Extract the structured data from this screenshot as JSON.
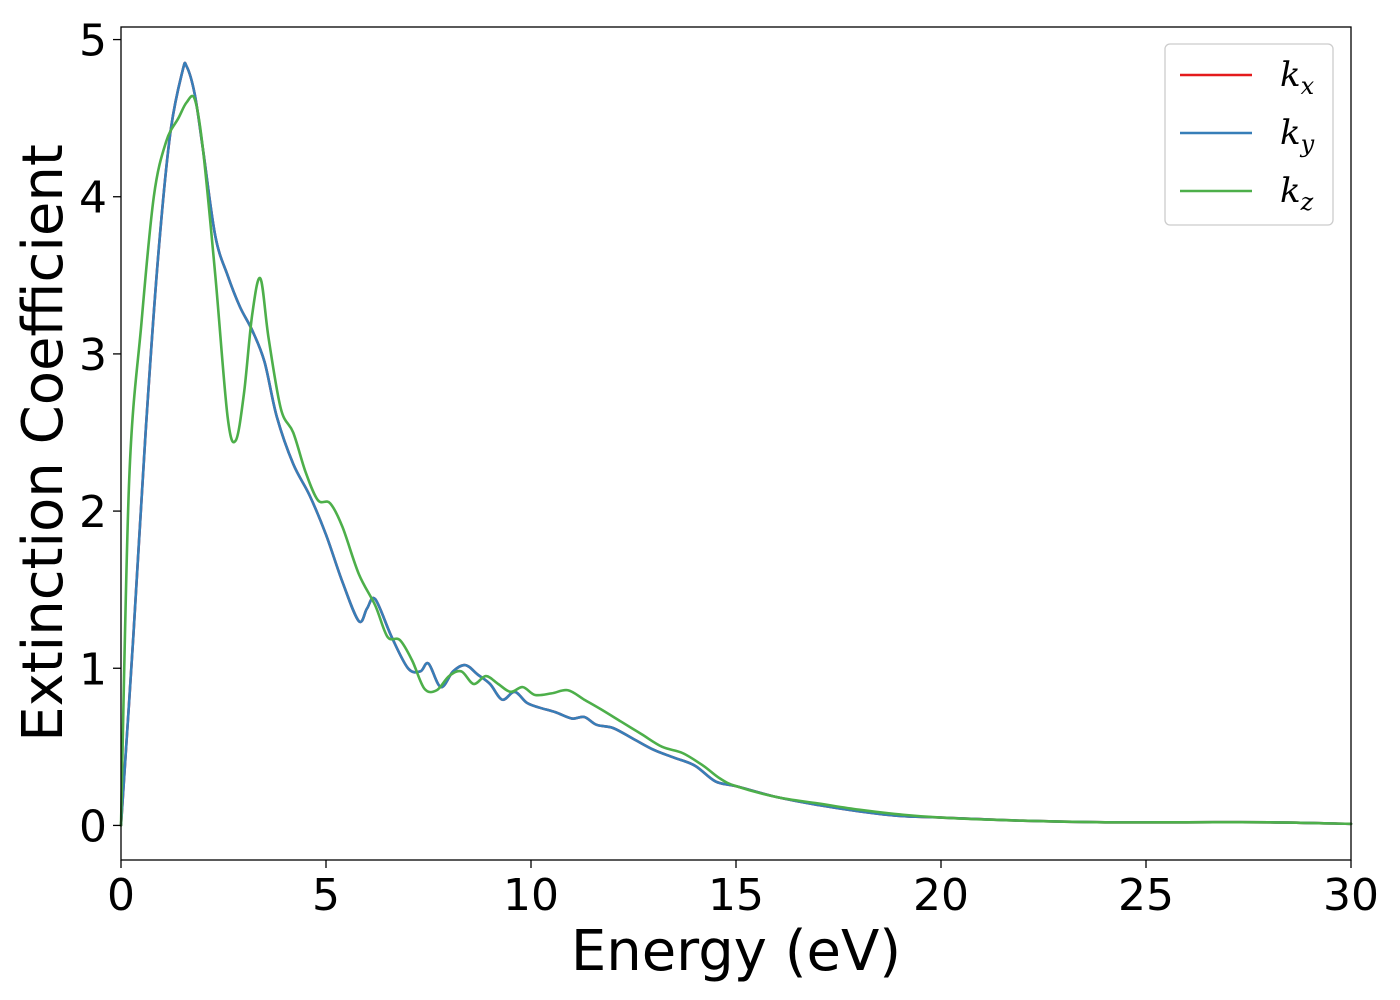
{
  "chart_data": {
    "type": "line",
    "title": "",
    "xlabel": "Energy (eV)",
    "ylabel": "Extinction Coefficient",
    "xlim": [
      0,
      30
    ],
    "ylim": [
      -0.22,
      5.08
    ],
    "xticks": [
      "0",
      "5",
      "10",
      "15",
      "20",
      "25",
      "30"
    ],
    "yticks": [
      "0",
      "1",
      "2",
      "3",
      "4",
      "5"
    ],
    "grid": false,
    "legend_position": "top-right",
    "series": [
      {
        "name": "k",
        "subscript": "x",
        "color": "#e41a1c",
        "x": [
          0,
          0.3,
          0.6,
          0.9,
          1.2,
          1.5,
          1.6,
          1.8,
          2.0,
          2.3,
          2.6,
          2.9,
          3.2,
          3.5,
          3.8,
          4.2,
          4.6,
          5.0,
          5.4,
          5.8,
          6.0,
          6.2,
          6.6,
          7.0,
          7.3,
          7.5,
          7.8,
          8.1,
          8.4,
          8.7,
          9.0,
          9.3,
          9.6,
          9.9,
          10.2,
          10.6,
          11.0,
          11.3,
          11.6,
          12.0,
          12.5,
          13.0,
          13.5,
          14.0,
          14.5,
          15.0,
          16.0,
          17.0,
          18.0,
          19.0,
          20.0,
          22.0,
          24.0,
          26.0,
          28.0,
          30.0
        ],
        "y": [
          0,
          1.2,
          2.5,
          3.6,
          4.4,
          4.8,
          4.83,
          4.65,
          4.3,
          3.75,
          3.5,
          3.3,
          3.15,
          2.95,
          2.6,
          2.3,
          2.1,
          1.85,
          1.55,
          1.3,
          1.38,
          1.44,
          1.2,
          1.0,
          0.98,
          1.03,
          0.88,
          0.98,
          1.02,
          0.96,
          0.9,
          0.8,
          0.85,
          0.78,
          0.75,
          0.72,
          0.68,
          0.69,
          0.64,
          0.62,
          0.55,
          0.48,
          0.43,
          0.38,
          0.28,
          0.25,
          0.18,
          0.13,
          0.09,
          0.06,
          0.05,
          0.03,
          0.02,
          0.02,
          0.02,
          0.01
        ]
      },
      {
        "name": "k",
        "subscript": "y",
        "color": "#377eb8",
        "x": [
          0,
          0.3,
          0.6,
          0.9,
          1.2,
          1.5,
          1.6,
          1.8,
          2.0,
          2.3,
          2.6,
          2.9,
          3.2,
          3.5,
          3.8,
          4.2,
          4.6,
          5.0,
          5.4,
          5.8,
          6.0,
          6.2,
          6.6,
          7.0,
          7.3,
          7.5,
          7.8,
          8.1,
          8.4,
          8.7,
          9.0,
          9.3,
          9.6,
          9.9,
          10.2,
          10.6,
          11.0,
          11.3,
          11.6,
          12.0,
          12.5,
          13.0,
          13.5,
          14.0,
          14.5,
          15.0,
          16.0,
          17.0,
          18.0,
          19.0,
          20.0,
          22.0,
          24.0,
          26.0,
          28.0,
          30.0
        ],
        "y": [
          0,
          1.2,
          2.5,
          3.6,
          4.4,
          4.8,
          4.83,
          4.65,
          4.3,
          3.75,
          3.5,
          3.3,
          3.15,
          2.95,
          2.6,
          2.3,
          2.1,
          1.85,
          1.55,
          1.3,
          1.38,
          1.44,
          1.2,
          1.0,
          0.98,
          1.03,
          0.88,
          0.98,
          1.02,
          0.96,
          0.9,
          0.8,
          0.85,
          0.78,
          0.75,
          0.72,
          0.68,
          0.69,
          0.64,
          0.62,
          0.55,
          0.48,
          0.43,
          0.38,
          0.28,
          0.25,
          0.18,
          0.13,
          0.09,
          0.06,
          0.05,
          0.03,
          0.02,
          0.02,
          0.02,
          0.01
        ]
      },
      {
        "name": "k",
        "subscript": "z",
        "color": "#4daf4a",
        "x": [
          0,
          0.2,
          0.5,
          0.8,
          1.1,
          1.4,
          1.6,
          1.8,
          2.0,
          2.3,
          2.6,
          2.8,
          3.0,
          3.2,
          3.4,
          3.6,
          3.9,
          4.2,
          4.5,
          4.8,
          5.1,
          5.4,
          5.8,
          6.2,
          6.5,
          6.8,
          7.1,
          7.4,
          7.7,
          8.0,
          8.3,
          8.6,
          8.9,
          9.2,
          9.5,
          9.8,
          10.1,
          10.5,
          10.9,
          11.3,
          11.7,
          12.2,
          12.7,
          13.2,
          13.7,
          14.2,
          14.6,
          15.0,
          16.0,
          17.0,
          18.0,
          19.0,
          20.0,
          22.0,
          24.0,
          26.0,
          28.0,
          30.0
        ],
        "y": [
          0,
          2.2,
          3.2,
          4.0,
          4.35,
          4.5,
          4.6,
          4.62,
          4.3,
          3.5,
          2.6,
          2.45,
          2.75,
          3.25,
          3.48,
          3.1,
          2.65,
          2.5,
          2.25,
          2.07,
          2.05,
          1.9,
          1.6,
          1.4,
          1.2,
          1.18,
          1.05,
          0.87,
          0.86,
          0.95,
          0.98,
          0.9,
          0.95,
          0.9,
          0.85,
          0.88,
          0.83,
          0.84,
          0.86,
          0.8,
          0.74,
          0.66,
          0.58,
          0.5,
          0.46,
          0.38,
          0.3,
          0.25,
          0.18,
          0.14,
          0.1,
          0.07,
          0.05,
          0.03,
          0.02,
          0.02,
          0.02,
          0.01
        ]
      }
    ]
  }
}
